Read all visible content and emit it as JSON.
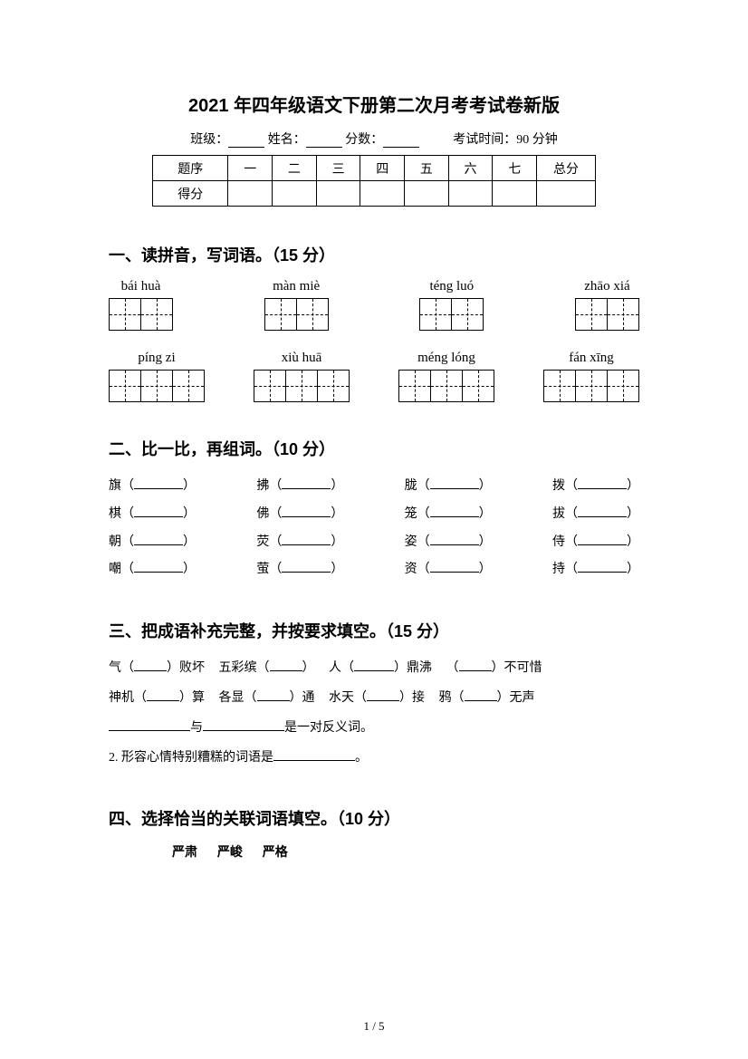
{
  "title": "2021 年四年级语文下册第二次月考考试卷新版",
  "info": {
    "class": "班级：",
    "name": "姓名：",
    "score": "分数：",
    "time": "考试时间：90 分钟"
  },
  "scoreTable": {
    "header": "题序",
    "cols": [
      "一",
      "二",
      "三",
      "四",
      "五",
      "六",
      "七"
    ],
    "total": "总分",
    "row2": "得分"
  },
  "section1": {
    "heading": "一、读拼音，写词语。（15 分）",
    "row1": [
      "bái huà",
      "màn miè",
      "téng luó",
      "zhāo xiá"
    ],
    "row1cells": [
      2,
      2,
      2,
      2
    ],
    "row2": [
      "píng zi",
      "xiù huā",
      "méng lóng",
      "fán xīng"
    ],
    "row2cells": [
      3,
      3,
      3,
      3
    ]
  },
  "section2": {
    "heading": "二、比一比，再组词。（10 分）",
    "lines": [
      [
        "旗",
        "拂",
        "胧",
        "拨"
      ],
      [
        "棋",
        "佛",
        "笼",
        "拔"
      ],
      [
        "朝",
        "荧",
        "姿",
        "侍"
      ],
      [
        "嘲",
        "萤",
        "资",
        "持"
      ]
    ]
  },
  "section3": {
    "heading": "三、把成语补充完整，并按要求填空。（15 分）",
    "line1": {
      "a": "气（",
      "b": "）败坏",
      "c": "五彩缤（",
      "d": "）",
      "e": "人（",
      "f": "）鼎沸",
      "g": "（",
      "h": "）不可惜"
    },
    "line2": {
      "a": "神机（",
      "b": "）算",
      "c": "各显（",
      "d": "）通",
      "e": "水天（",
      "f": "）接",
      "g": "鸦（",
      "h": "）无声"
    },
    "line3": {
      "mid": "与",
      "end": "是一对反义词。"
    },
    "line4": "2. 形容心情特别糟糕的词语是",
    "line4end": "。"
  },
  "section4": {
    "heading": "四、选择恰当的关联词语填空。（10 分）",
    "words": [
      "严肃",
      "严峻",
      "严格"
    ]
  },
  "footer": "1 / 5"
}
